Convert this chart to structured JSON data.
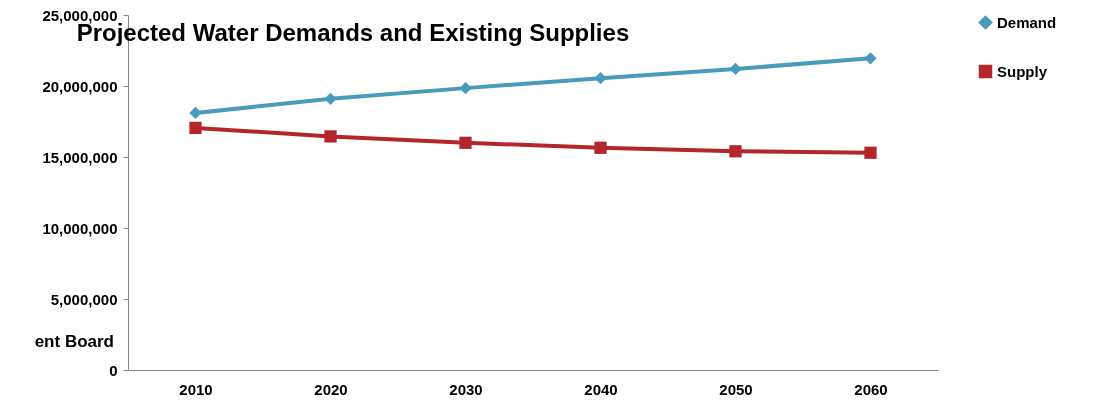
{
  "chart_data": {
    "type": "line",
    "title": "Projected Water Demands and Existing Supplies",
    "categories": [
      "2010",
      "2020",
      "2030",
      "2040",
      "2050",
      "2060"
    ],
    "series": [
      {
        "name": "Demand",
        "color": "#4a9bbb",
        "marker": "diamond",
        "values": [
          18100000,
          19100000,
          19850000,
          20550000,
          21200000,
          21950000
        ]
      },
      {
        "name": "Supply",
        "color": "#b5262b",
        "marker": "square",
        "values": [
          17050000,
          16450000,
          16000000,
          15650000,
          15400000,
          15300000
        ]
      }
    ],
    "ylim": [
      0,
      25000000
    ],
    "yticks": [
      0,
      {
        "value": 5000000,
        "label": "5,000,000"
      },
      {
        "value": 10000000,
        "label": "10,000,000"
      },
      {
        "value": 15000000,
        "label": "15,000,000"
      },
      {
        "value": 20000000,
        "label": "20,000,000"
      },
      {
        "value": 25000000,
        "label": "25,000,000"
      }
    ],
    "grid": false,
    "legend": "right",
    "line_style": "solid",
    "annotations": [
      "ent Board"
    ]
  }
}
